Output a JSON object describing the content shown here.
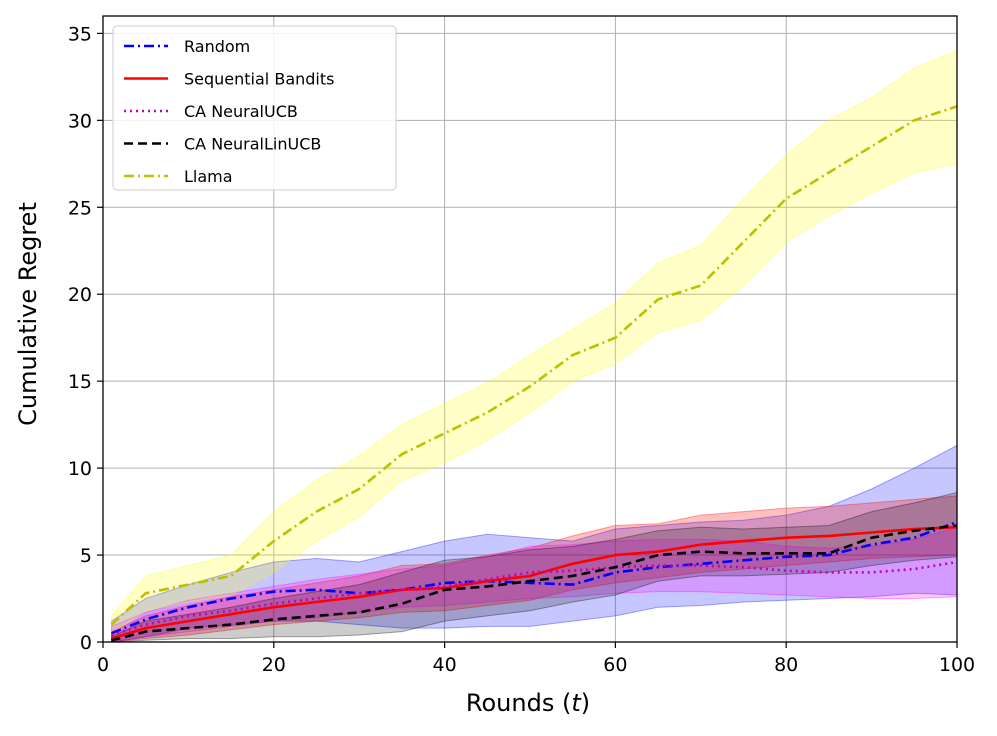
{
  "chart_data": {
    "type": "line",
    "title": "",
    "xlabel_text": "Rounds (",
    "xlabel_var": "t",
    "xlabel_close": ")",
    "ylabel": "Cumulative Regret",
    "xlim": [
      0,
      100
    ],
    "ylim": [
      0,
      36
    ],
    "xticks": [
      0,
      20,
      40,
      60,
      80,
      100
    ],
    "yticks": [
      0,
      5,
      10,
      15,
      20,
      25,
      30,
      35
    ],
    "grid": true,
    "legend_position": "top-left",
    "series": [
      {
        "name": "Random",
        "color": "#0000ff",
        "dash": "dashdot",
        "x": [
          1,
          5,
          10,
          15,
          20,
          25,
          30,
          35,
          40,
          45,
          50,
          55,
          60,
          65,
          70,
          75,
          80,
          85,
          90,
          95,
          100
        ],
        "values": [
          0.5,
          1.3,
          2.0,
          2.5,
          2.9,
          3.0,
          2.8,
          3.0,
          3.4,
          3.5,
          3.4,
          3.3,
          4.0,
          4.3,
          4.5,
          4.7,
          4.9,
          5.0,
          5.6,
          6.0,
          6.9
        ],
        "lower": [
          0.0,
          0.3,
          0.8,
          1.0,
          1.2,
          1.2,
          1.0,
          0.8,
          0.8,
          0.9,
          0.9,
          1.2,
          1.5,
          2.0,
          2.1,
          2.3,
          2.4,
          2.5,
          2.6,
          2.8,
          2.7
        ],
        "upper": [
          1.2,
          2.5,
          3.3,
          4.0,
          4.6,
          4.8,
          4.6,
          5.2,
          5.8,
          6.2,
          6.0,
          5.8,
          6.5,
          6.7,
          6.9,
          7.0,
          7.3,
          7.8,
          8.8,
          10.0,
          11.3
        ]
      },
      {
        "name": "Sequential Bandits",
        "color": "#ff0000",
        "dash": "solid",
        "x": [
          1,
          5,
          10,
          15,
          20,
          25,
          30,
          35,
          40,
          45,
          50,
          55,
          60,
          65,
          70,
          75,
          80,
          85,
          90,
          95,
          100
        ],
        "values": [
          0.2,
          0.8,
          1.2,
          1.6,
          2.0,
          2.3,
          2.6,
          3.0,
          3.1,
          3.5,
          3.8,
          4.5,
          5.0,
          5.2,
          5.6,
          5.8,
          6.0,
          6.1,
          6.3,
          6.5,
          6.6
        ],
        "lower": [
          0.0,
          0.2,
          0.4,
          0.7,
          1.0,
          1.2,
          1.4,
          1.7,
          1.8,
          2.1,
          2.4,
          3.0,
          3.4,
          3.7,
          4.0,
          4.2,
          4.4,
          4.6,
          4.8,
          4.9,
          5.0
        ],
        "upper": [
          0.6,
          1.5,
          2.1,
          2.6,
          3.0,
          3.4,
          3.8,
          4.4,
          4.5,
          5.0,
          5.4,
          6.1,
          6.7,
          6.8,
          7.3,
          7.5,
          7.7,
          7.8,
          8.0,
          8.2,
          8.4
        ]
      },
      {
        "name": "CA NeuralUCB",
        "color": "#c000c0",
        "dash": "dotted",
        "x": [
          1,
          5,
          10,
          15,
          20,
          25,
          30,
          35,
          40,
          45,
          50,
          55,
          60,
          65,
          70,
          75,
          80,
          85,
          90,
          95,
          100
        ],
        "values": [
          0.4,
          1.0,
          1.5,
          1.8,
          2.2,
          2.5,
          2.8,
          3.0,
          3.2,
          3.6,
          4.0,
          4.1,
          4.3,
          4.4,
          4.4,
          4.3,
          4.1,
          4.0,
          4.0,
          4.2,
          4.6
        ],
        "lower": [
          0.0,
          0.3,
          0.6,
          0.9,
          1.2,
          1.4,
          1.7,
          2.0,
          2.1,
          2.3,
          2.5,
          2.6,
          2.8,
          2.9,
          2.9,
          2.8,
          2.7,
          2.6,
          2.5,
          2.5,
          2.6
        ],
        "upper": [
          0.9,
          1.7,
          2.4,
          2.8,
          3.2,
          3.6,
          3.9,
          4.2,
          4.4,
          4.9,
          5.5,
          5.6,
          5.8,
          5.9,
          5.9,
          5.8,
          5.5,
          5.4,
          5.5,
          5.9,
          6.6
        ]
      },
      {
        "name": "CA NeuralLinUCB",
        "color": "#000000",
        "dash": "dashed",
        "x": [
          1,
          5,
          10,
          15,
          20,
          25,
          30,
          35,
          40,
          45,
          50,
          55,
          60,
          65,
          70,
          75,
          80,
          85,
          90,
          95,
          100
        ],
        "values": [
          0.1,
          0.6,
          0.8,
          1.0,
          1.3,
          1.5,
          1.7,
          2.2,
          3.0,
          3.2,
          3.5,
          3.8,
          4.3,
          5.0,
          5.2,
          5.1,
          5.1,
          5.1,
          6.0,
          6.4,
          6.7
        ],
        "lower": [
          0.0,
          0.1,
          0.2,
          0.2,
          0.3,
          0.3,
          0.4,
          0.6,
          1.2,
          1.5,
          1.8,
          2.3,
          2.7,
          3.5,
          3.8,
          3.8,
          3.9,
          4.0,
          4.4,
          4.7,
          4.9
        ],
        "upper": [
          0.3,
          1.2,
          1.6,
          2.0,
          2.5,
          2.9,
          3.3,
          4.0,
          4.7,
          4.9,
          5.3,
          5.5,
          5.9,
          6.4,
          6.6,
          6.5,
          6.6,
          6.7,
          7.5,
          8.0,
          8.6
        ]
      },
      {
        "name": "Llama",
        "color": "#bfbf00",
        "dash": "dashdot",
        "x": [
          1,
          5,
          10,
          15,
          20,
          25,
          30,
          35,
          40,
          45,
          50,
          55,
          60,
          65,
          70,
          75,
          80,
          85,
          90,
          95,
          100
        ],
        "values": [
          1.0,
          2.8,
          3.3,
          3.8,
          5.8,
          7.5,
          8.8,
          10.8,
          12.0,
          13.2,
          14.7,
          16.5,
          17.5,
          19.7,
          20.5,
          23.0,
          25.5,
          27.0,
          28.5,
          30.0,
          30.8
        ],
        "lower": [
          0.5,
          1.8,
          2.3,
          2.7,
          4.0,
          5.8,
          7.2,
          9.3,
          10.3,
          11.6,
          13.2,
          15.0,
          16.0,
          17.8,
          18.5,
          20.5,
          23.0,
          24.5,
          25.8,
          27.0,
          27.5
        ],
        "upper": [
          1.5,
          3.8,
          4.4,
          5.0,
          7.5,
          9.3,
          10.7,
          12.5,
          13.7,
          14.9,
          16.5,
          18.0,
          19.5,
          21.8,
          22.8,
          25.5,
          28.0,
          30.0,
          31.3,
          33.0,
          34.0
        ]
      }
    ]
  },
  "colors": {
    "random_band": "#0000ff",
    "seq_band": "#ff0000",
    "neuralucb_band": "#ff00ff",
    "neurallinucb_band": "#000000",
    "llama_band": "#ffff00"
  }
}
